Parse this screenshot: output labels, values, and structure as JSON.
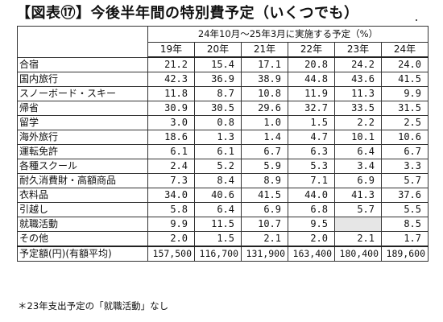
{
  "title": "【図表⑰】今後半年間の特別費予定（いくつでも）",
  "header": {
    "span_label": "24年10月～25年3月に実施する予定（%）",
    "years": [
      "19年",
      "20年",
      "21年",
      "22年",
      "23年",
      "24年"
    ]
  },
  "rows": [
    {
      "label": "合宿",
      "values": [
        "21.2",
        "15.4",
        "17.1",
        "20.8",
        "24.2",
        "24.0"
      ]
    },
    {
      "label": "国内旅行",
      "values": [
        "42.3",
        "36.9",
        "38.9",
        "44.8",
        "43.6",
        "41.5"
      ]
    },
    {
      "label": "スノーボード・スキー",
      "values": [
        "11.8",
        "8.7",
        "10.8",
        "11.9",
        "11.3",
        "9.9"
      ]
    },
    {
      "label": "帰省",
      "values": [
        "30.9",
        "30.5",
        "29.6",
        "32.7",
        "33.5",
        "31.5"
      ]
    },
    {
      "label": "留学",
      "values": [
        "3.0",
        "0.8",
        "1.0",
        "1.5",
        "2.2",
        "2.5"
      ]
    },
    {
      "label": "海外旅行",
      "values": [
        "18.6",
        "1.3",
        "1.4",
        "4.7",
        "10.1",
        "10.6"
      ]
    },
    {
      "label": "運転免許",
      "values": [
        "6.1",
        "6.1",
        "6.7",
        "6.3",
        "6.4",
        "6.7"
      ]
    },
    {
      "label": "各種スクール",
      "values": [
        "2.4",
        "5.2",
        "5.9",
        "5.3",
        "3.4",
        "3.3"
      ]
    },
    {
      "label": "耐久消費財・高額商品",
      "values": [
        "7.3",
        "8.4",
        "8.9",
        "7.1",
        "6.9",
        "5.7"
      ]
    },
    {
      "label": "衣料品",
      "values": [
        "34.0",
        "40.6",
        "41.5",
        "44.0",
        "41.3",
        "37.6"
      ]
    },
    {
      "label": "引越し",
      "values": [
        "5.8",
        "6.4",
        "6.9",
        "6.8",
        "5.7",
        "5.5"
      ]
    },
    {
      "label": "就職活動",
      "values": [
        "9.9",
        "11.5",
        "10.7",
        "9.5",
        "",
        "8.5"
      ]
    },
    {
      "label": "その他",
      "values": [
        "2.0",
        "1.5",
        "2.1",
        "2.0",
        "2.1",
        "1.7"
      ]
    }
  ],
  "total": {
    "label": "予定額(円)(有額平均)",
    "values": [
      "157,500",
      "116,700",
      "131,900",
      "163,400",
      "180,400",
      "189,600"
    ]
  },
  "note": "＊23年支出予定の「就職活動」なし",
  "colors": {
    "blank_cell": "#e6e6e6",
    "border": "#333333"
  }
}
